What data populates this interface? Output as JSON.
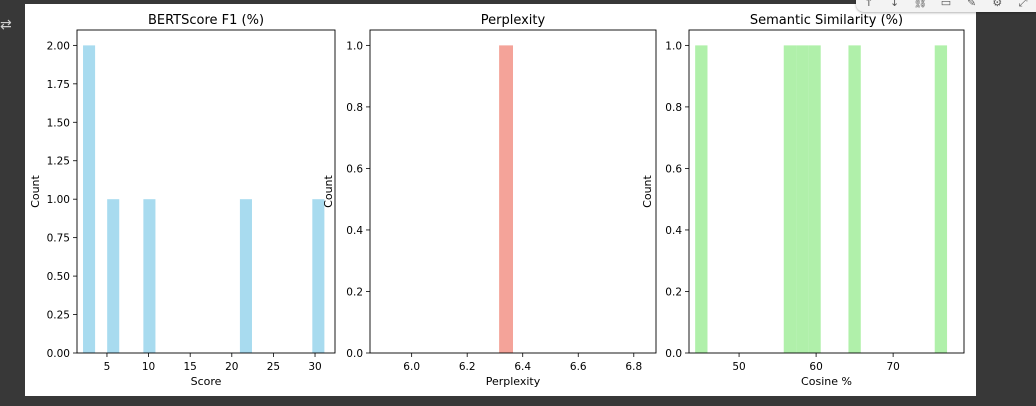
{
  "toolbar": {
    "icons": [
      "arrow-up-icon",
      "arrow-down-icon",
      "link-icon",
      "comment-icon",
      "edit-icon",
      "gear-icon",
      "expand-icon"
    ]
  },
  "colors": {
    "bert": "#a8dbef",
    "perplexity": "#f4a399",
    "similarity": "#b0f0aa"
  },
  "chart_data": [
    {
      "type": "bar",
      "title": "BERTScore F1 (%)",
      "xlabel": "Score",
      "ylabel": "Count",
      "xlim": [
        1.4,
        32.4
      ],
      "ylim": [
        0,
        2.1
      ],
      "xticks": [
        5,
        10,
        15,
        20,
        25,
        30
      ],
      "yticks": [
        0.0,
        0.25,
        0.5,
        0.75,
        1.0,
        1.25,
        1.5,
        1.75,
        2.0
      ],
      "ytick_labels": [
        "0.00",
        "0.25",
        "0.50",
        "0.75",
        "1.00",
        "1.25",
        "1.50",
        "1.75",
        "2.00"
      ],
      "bin_width": 1.45,
      "bars": [
        {
          "x": 2.85,
          "count": 2
        },
        {
          "x": 5.75,
          "count": 1
        },
        {
          "x": 10.1,
          "count": 1
        },
        {
          "x": 21.7,
          "count": 1
        },
        {
          "x": 30.4,
          "count": 1
        }
      ]
    },
    {
      "type": "bar",
      "title": "Perplexity",
      "xlabel": "Perplexity",
      "ylabel": "Count",
      "xlim": [
        5.85,
        6.88
      ],
      "ylim": [
        0,
        1.05
      ],
      "xticks": [
        6.0,
        6.2,
        6.4,
        6.6,
        6.8
      ],
      "xtick_labels": [
        "6.0",
        "6.2",
        "6.4",
        "6.6",
        "6.8"
      ],
      "yticks": [
        0.0,
        0.2,
        0.4,
        0.6,
        0.8,
        1.0
      ],
      "ytick_labels": [
        "0.0",
        "0.2",
        "0.4",
        "0.6",
        "0.8",
        "1.0"
      ],
      "bin_width": 0.05,
      "bars": [
        {
          "x": 6.34,
          "count": 1
        }
      ]
    },
    {
      "type": "bar",
      "title": "Semantic Similarity (%)",
      "xlabel": "Cosine %",
      "ylabel": "Count",
      "xlim": [
        43.5,
        79.2
      ],
      "ylim": [
        0,
        1.05
      ],
      "xticks": [
        50,
        60,
        70
      ],
      "yticks": [
        0.0,
        0.2,
        0.4,
        0.6,
        0.8,
        1.0
      ],
      "ytick_labels": [
        "0.0",
        "0.2",
        "0.4",
        "0.6",
        "0.8",
        "1.0"
      ],
      "bin_width": 1.6,
      "bars": [
        {
          "x": 45.1,
          "count": 1
        },
        {
          "x": 56.6,
          "count": 1
        },
        {
          "x": 58.2,
          "count": 1
        },
        {
          "x": 59.8,
          "count": 1
        },
        {
          "x": 65.0,
          "count": 1
        },
        {
          "x": 76.2,
          "count": 1
        }
      ]
    }
  ]
}
